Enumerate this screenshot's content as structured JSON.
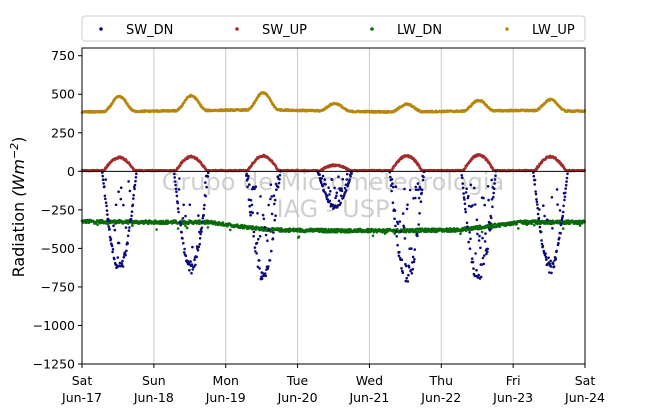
{
  "chart_data": {
    "type": "scatter",
    "title": "",
    "xlabel": "",
    "ylabel": "Radiation",
    "ylabel_unit": "(Wm",
    "ylabel_exp": "−2",
    "ylabel_close": ")",
    "ylim": [
      -1250,
      800
    ],
    "xlim": [
      0,
      7
    ],
    "y_ticks": [
      -1250,
      -1000,
      -750,
      -500,
      -250,
      0,
      250,
      500,
      750
    ],
    "x_ticks": [
      {
        "day": "Sat",
        "date": "Jun-17"
      },
      {
        "day": "Sun",
        "date": "Jun-18"
      },
      {
        "day": "Mon",
        "date": "Jun-19"
      },
      {
        "day": "Tue",
        "date": "Jun-20"
      },
      {
        "day": "Wed",
        "date": "Jun-21"
      },
      {
        "day": "Thu",
        "date": "Jun-22"
      },
      {
        "day": "Fri",
        "date": "Jun-23"
      },
      {
        "day": "Sat",
        "date": "Jun-24"
      }
    ],
    "grid": "vertical",
    "legend_position": "top",
    "watermark": [
      "Grupo de Micrometeorologia",
      "IAG - USP"
    ],
    "series": [
      {
        "name": "SW_DN",
        "color": "#0a0a7a",
        "kind": "sw_dn",
        "peaks": [
          {
            "day_offset": 0.52,
            "value": -640
          },
          {
            "day_offset": 1.52,
            "value": -650
          },
          {
            "day_offset": 2.52,
            "value": -700
          },
          {
            "day_offset": 3.52,
            "value": -240
          },
          {
            "day_offset": 4.52,
            "value": -730
          },
          {
            "day_offset": 5.52,
            "value": -730
          },
          {
            "day_offset": 6.52,
            "value": -650
          }
        ]
      },
      {
        "name": "SW_UP",
        "color": "#a52a2a",
        "kind": "sw_up",
        "peaks": [
          {
            "day_offset": 0.52,
            "value": 90
          },
          {
            "day_offset": 1.52,
            "value": 95
          },
          {
            "day_offset": 2.52,
            "value": 100
          },
          {
            "day_offset": 3.52,
            "value": 40
          },
          {
            "day_offset": 4.52,
            "value": 100
          },
          {
            "day_offset": 5.52,
            "value": 105
          },
          {
            "day_offset": 6.52,
            "value": 95
          }
        ]
      },
      {
        "name": "LW_DN",
        "color": "#0a6b0a",
        "kind": "lw",
        "base": [
          -325,
          -330,
          -330,
          -380,
          -385,
          -385,
          -380,
          -330,
          -330
        ],
        "noise": 22
      },
      {
        "name": "LW_UP",
        "color": "#b8860b",
        "kind": "lw_up",
        "base": [
          385,
          390,
          395,
          400,
          390,
          385,
          390,
          395,
          390
        ],
        "peaks": [
          {
            "day_offset": 0.52,
            "value": 485
          },
          {
            "day_offset": 1.52,
            "value": 490
          },
          {
            "day_offset": 2.52,
            "value": 510
          },
          {
            "day_offset": 3.52,
            "value": 440
          },
          {
            "day_offset": 4.52,
            "value": 435
          },
          {
            "day_offset": 5.52,
            "value": 460
          },
          {
            "day_offset": 6.52,
            "value": 465
          }
        ]
      }
    ]
  }
}
